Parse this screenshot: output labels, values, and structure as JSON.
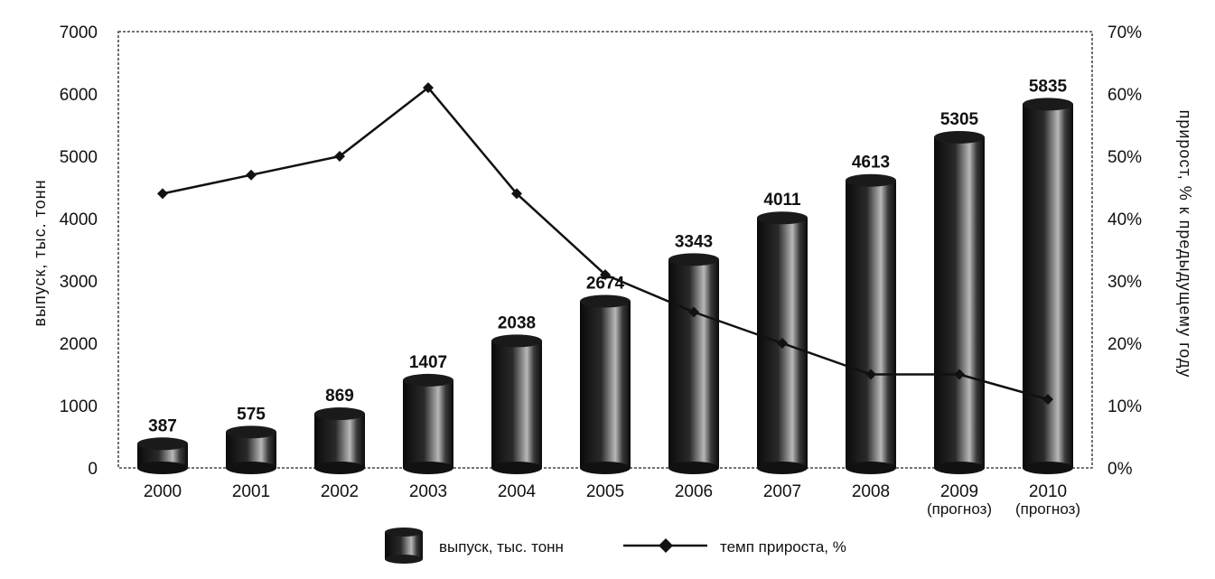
{
  "chart_data": {
    "type": "bar",
    "categories": [
      "2000",
      "2001",
      "2002",
      "2003",
      "2004",
      "2005",
      "2006",
      "2007",
      "2008",
      "2009",
      "2010"
    ],
    "category_sublabels": [
      "",
      "",
      "",
      "",
      "",
      "",
      "",
      "",
      "",
      "(прогноз)",
      "(прогноз)"
    ],
    "series": [
      {
        "name": "выпуск, тыс. тонн",
        "type": "bar",
        "axis": "left",
        "values": [
          387,
          575,
          869,
          1407,
          2038,
          2674,
          3343,
          4011,
          4613,
          5305,
          5835
        ],
        "data_labels": [
          "387",
          "575",
          "869",
          "1407",
          "2038",
          "2674",
          "3343",
          "4011",
          "4613",
          "5305",
          "5835"
        ]
      },
      {
        "name": "темп прироста, %",
        "type": "line",
        "axis": "right",
        "marker": "diamond",
        "values": [
          44,
          47,
          50,
          61,
          44,
          31,
          25,
          20,
          15,
          15,
          11
        ]
      }
    ],
    "ylabel": "выпуск, тыс. тонн",
    "ylabel_right": "прирост, % к предыдущему году",
    "ylim": [
      0,
      7000
    ],
    "yticks": [
      "0",
      "1000",
      "2000",
      "3000",
      "4000",
      "5000",
      "6000",
      "7000"
    ],
    "ylim_right": [
      0,
      70
    ],
    "yticks_right": [
      "0%",
      "10%",
      "20%",
      "30%",
      "40%",
      "50%",
      "60%",
      "70%"
    ],
    "grid": false,
    "legend_position": "bottom-center",
    "colors": {
      "bar": "#1a1a1a",
      "line": "#111111"
    }
  }
}
